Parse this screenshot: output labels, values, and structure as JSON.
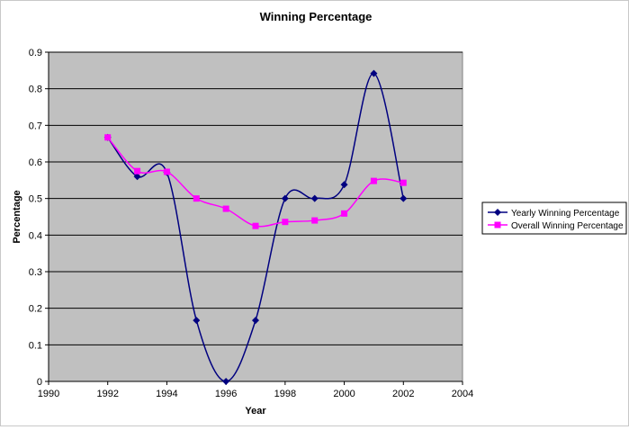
{
  "chart_data": {
    "type": "line",
    "title": "Winning Percentage",
    "xlabel": "Year",
    "ylabel": "Percentage",
    "xlim": [
      1990,
      2004
    ],
    "ylim": [
      0,
      0.9
    ],
    "x_ticks": [
      1990,
      1992,
      1994,
      1996,
      1998,
      2000,
      2002,
      2004
    ],
    "y_ticks": [
      0,
      0.1,
      0.2,
      0.3,
      0.4,
      0.5,
      0.6,
      0.7,
      0.8,
      0.9
    ],
    "grid": "horizontal",
    "legend_position": "right",
    "series": [
      {
        "name": "Yearly Winning Percentage",
        "color": "#000080",
        "marker": "diamond",
        "x": [
          1992,
          1993,
          1994,
          1995,
          1996,
          1997,
          1998,
          1999,
          2000,
          2001,
          2002
        ],
        "y": [
          0.667,
          0.56,
          0.571,
          0.167,
          0.0,
          0.167,
          0.5,
          0.5,
          0.538,
          0.842,
          0.5
        ]
      },
      {
        "name": "Overall Winning Percentage",
        "color": "#ff00ff",
        "marker": "square",
        "x": [
          1992,
          1993,
          1994,
          1995,
          1996,
          1997,
          1998,
          1999,
          2000,
          2001,
          2002
        ],
        "y": [
          0.667,
          0.575,
          0.573,
          0.5,
          0.472,
          0.425,
          0.436,
          0.44,
          0.459,
          0.548,
          0.543
        ]
      }
    ]
  }
}
